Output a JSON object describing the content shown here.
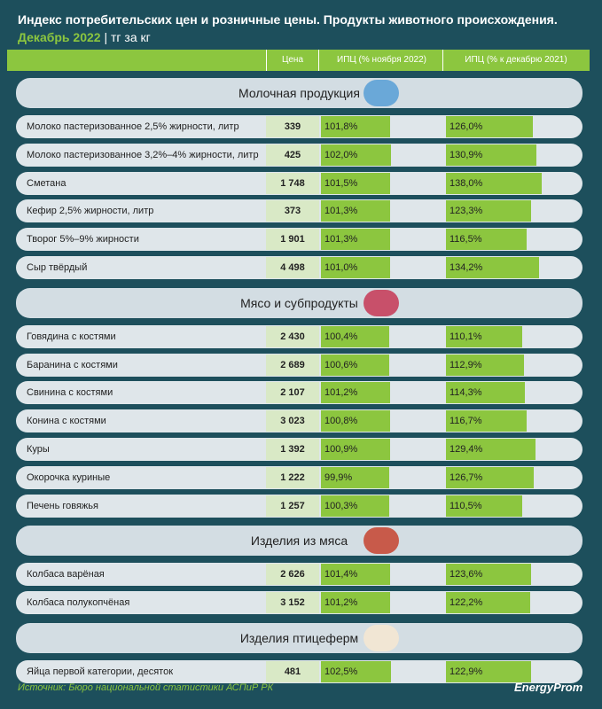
{
  "header": {
    "title": "Индекс потребительских цен и розничные цены. Продукты животного происхождения.",
    "date": "Декабрь 2022",
    "unit": "| тг за кг"
  },
  "columns": [
    "Цена",
    "ИПЦ (% ноября 2022)",
    "ИПЦ (% к декабрю 2021)"
  ],
  "sections": [
    {
      "title": "Молочная продукция",
      "rows": [
        [
          "Молоко пастеризованное 2,5% жирности, литр",
          "339",
          "101,8%",
          "126,0%"
        ],
        [
          "Молоко пастеризованное 3,2%–4% жирности, литр",
          "425",
          "102,0%",
          "130,9%"
        ],
        [
          "Сметана",
          "1 748",
          "101,5%",
          "138,0%"
        ],
        [
          "Кефир 2,5% жирности, литр",
          "373",
          "101,3%",
          "123,3%"
        ],
        [
          "Творог 5%–9% жирности",
          "1 901",
          "101,3%",
          "116,5%"
        ],
        [
          "Сыр твёрдый",
          "4 498",
          "101,0%",
          "134,2%"
        ]
      ]
    },
    {
      "title": "Мясо и субпродукты",
      "rows": [
        [
          "Говядина с костями",
          "2 430",
          "100,4%",
          "110,1%"
        ],
        [
          "Баранина с костями",
          "2 689",
          "100,6%",
          "112,9%"
        ],
        [
          "Свинина с костями",
          "2 107",
          "101,2%",
          "114,3%"
        ],
        [
          "Конина с костями",
          "3 023",
          "100,8%",
          "116,7%"
        ],
        [
          "Куры",
          "1 392",
          "100,9%",
          "129,4%"
        ],
        [
          "Окорочка куриные",
          "1 222",
          "99,9%",
          "126,7%"
        ],
        [
          "Печень говяжья",
          "1 257",
          "100,3%",
          "110,5%"
        ]
      ]
    },
    {
      "title": "Изделия из мяса",
      "rows": [
        [
          "Колбаса варёная",
          "2 626",
          "101,4%",
          "123,6%"
        ],
        [
          "Колбаса полукопчёная",
          "3 152",
          "101,2%",
          "122,2%"
        ]
      ]
    },
    {
      "title": "Изделия птицеферм",
      "rows": [
        [
          "Яйца первой категории, десяток",
          "481",
          "102,5%",
          "122,9%"
        ]
      ]
    }
  ],
  "footer": {
    "source": "Источник: Бюро национальной статистики АСПиР РК",
    "logo": "EnergyProm"
  }
}
